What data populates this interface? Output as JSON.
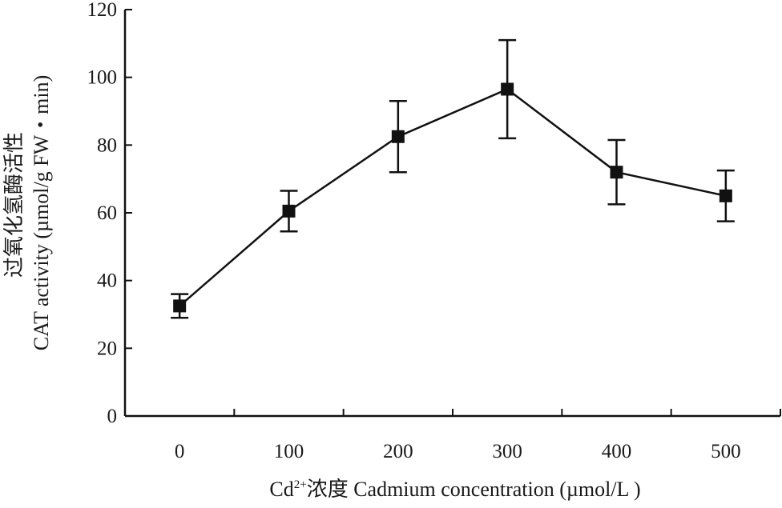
{
  "chart_data": {
    "type": "line",
    "categories": [
      "0",
      "100",
      "200",
      "300",
      "400",
      "500"
    ],
    "x": [
      0,
      100,
      200,
      300,
      400,
      500
    ],
    "series": [
      {
        "values": [
          32.5,
          60.5,
          82.5,
          96.5,
          72.0,
          65.0
        ],
        "error": [
          3.5,
          6.0,
          10.5,
          14.5,
          9.5,
          7.5
        ],
        "color": "#111111",
        "marker": "square"
      }
    ],
    "xlabel_prefix": "Cd",
    "xlabel_superscript": "2+",
    "xlabel_rest": "浓度 Cadmium concentration (µmol/L )",
    "ylabel_line1": "过氧化氢酶活性",
    "ylabel_line2": "CAT activity (µmol/g FW・min)",
    "ylim": [
      0,
      120
    ],
    "y_ticks": [
      "0",
      "20",
      "40",
      "60",
      "80",
      "100",
      "120"
    ],
    "grid": false,
    "legend": "none"
  }
}
